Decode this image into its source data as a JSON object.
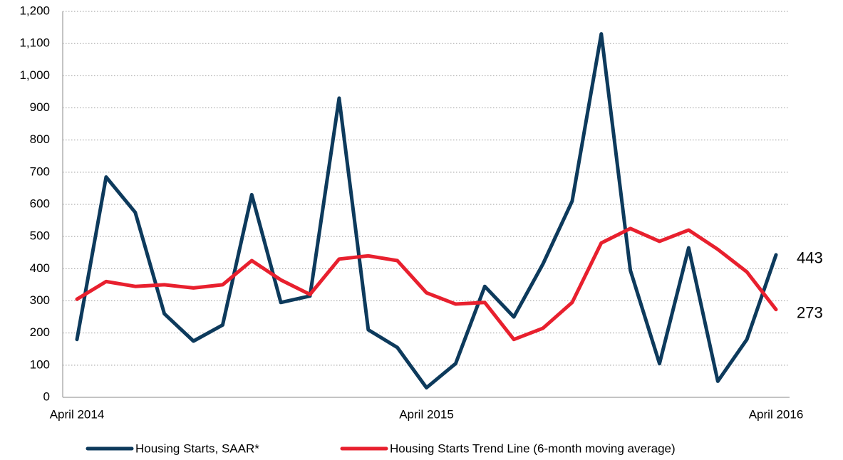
{
  "chart_data": {
    "type": "line",
    "categories": [
      "April 2014",
      null,
      null,
      null,
      null,
      null,
      null,
      null,
      null,
      null,
      null,
      null,
      "April 2015",
      null,
      null,
      null,
      null,
      null,
      null,
      null,
      null,
      null,
      null,
      null,
      "April 2016"
    ],
    "series": [
      {
        "name": "Housing Starts, SAAR*",
        "color": "#0d3a5c",
        "values": [
          180,
          685,
          575,
          260,
          175,
          225,
          630,
          295,
          315,
          930,
          210,
          155,
          30,
          105,
          345,
          250,
          415,
          610,
          1130,
          395,
          105,
          465,
          50,
          180,
          443
        ]
      },
      {
        "name": "Housing Starts Trend Line (6-month moving average)",
        "color": "#e8202e",
        "values": [
          305,
          360,
          345,
          350,
          340,
          350,
          425,
          365,
          320,
          430,
          440,
          425,
          325,
          290,
          295,
          180,
          215,
          295,
          480,
          525,
          485,
          520,
          460,
          390,
          273
        ]
      }
    ],
    "ylim": [
      0,
      1200
    ],
    "yticks": [
      0,
      100,
      200,
      300,
      400,
      500,
      600,
      700,
      800,
      900,
      {
        "value": 1000,
        "label": "1,000"
      },
      {
        "value": 1100,
        "label": "1,100"
      },
      {
        "value": 1200,
        "label": "1,200"
      }
    ],
    "grid": true,
    "legend": "bottom"
  }
}
